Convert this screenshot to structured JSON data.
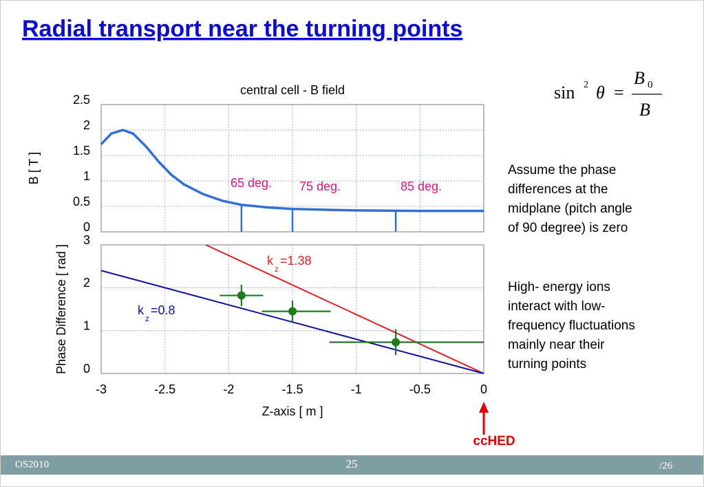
{
  "slide": {
    "title": "Radial transport near the turning points",
    "formula": {
      "sin": "sin",
      "power": "2",
      "theta": "θ",
      "equals": "=",
      "numerator": "B",
      "numerator_sub": "0",
      "denominator": "B"
    },
    "notes": [
      [
        "Assume the phase",
        "differences at the",
        "midplane (pitch angle",
        "of 90 degree) is zero"
      ],
      [
        "High- energy ions",
        "interact  with low-",
        "frequency fluctuations",
        "mainly near their",
        "turning points"
      ]
    ],
    "arrow_label": "ccHED",
    "footer": {
      "left": "OS2010",
      "center": "25",
      "right": "/26"
    }
  },
  "chart_data": [
    {
      "type": "line",
      "title": "central cell - B field",
      "y_label": "B  [ T ]",
      "xlim": [
        -3,
        0
      ],
      "xticks": [
        -3,
        -2.5,
        -2,
        -1.5,
        -1,
        -0.5,
        0
      ],
      "xtick_labels": false,
      "ylim": [
        0,
        2.5
      ],
      "yticks": [
        0,
        0.5,
        1,
        1.5,
        2,
        2.5
      ],
      "grid": true,
      "series": [
        {
          "type": "line",
          "color": "#2f6fd8",
          "x": [
            -3,
            -2.92,
            -2.83,
            -2.75,
            -2.65,
            -2.55,
            -2.45,
            -2.35,
            -2.2,
            -2.05,
            -1.9,
            -1.7,
            -1.5,
            -1.2,
            -1,
            -0.5,
            0
          ],
          "values": [
            1.72,
            1.93,
            2.0,
            1.93,
            1.68,
            1.38,
            1.12,
            0.93,
            0.74,
            0.61,
            0.53,
            0.48,
            0.45,
            0.43,
            0.42,
            0.41,
            0.41
          ]
        }
      ],
      "markers": {
        "color": "#2f6fd8",
        "x": [
          -1.9,
          -1.5,
          -0.69
        ],
        "values": [
          0.53,
          0.45,
          0.42
        ]
      },
      "annotations": [
        {
          "text": "65 deg.",
          "color": "#e0147a"
        },
        {
          "text": "75 deg.",
          "color": "#e0147a"
        },
        {
          "text": "85 deg.",
          "color": "#e0147a"
        }
      ]
    },
    {
      "type": "line",
      "x_label": "Z-axis  [ m ]",
      "y_label": "Phase Difference  [ rad ]",
      "xlim": [
        -3,
        0
      ],
      "xticks": [
        -3,
        -2.5,
        -2,
        -1.5,
        -1,
        -0.5,
        0
      ],
      "ylim": [
        0,
        3
      ],
      "yticks": [
        0,
        1,
        2,
        3
      ],
      "grid": true,
      "series": [
        {
          "type": "line",
          "color": "#e02020",
          "label": {
            "k": "k",
            "sub": "z",
            "rest": "=1.38"
          },
          "x": [
            -2.18,
            0
          ],
          "values": [
            3,
            0
          ]
        },
        {
          "type": "line",
          "color": "#1010a0",
          "label": {
            "k": "k",
            "sub": "z",
            "rest": "=0.8"
          },
          "x": [
            -3,
            0
          ],
          "values": [
            2.4,
            0
          ]
        },
        {
          "type": "errorbar",
          "color": "#1d7a1d",
          "x": [
            -1.9,
            -1.5,
            -0.69
          ],
          "values": [
            1.82,
            1.45,
            0.73
          ],
          "xerr": [
            [
              0.17,
              0.17
            ],
            [
              0.24,
              0.3
            ],
            [
              0.52,
              0.69
            ]
          ],
          "yerr": [
            0.25,
            0.25,
            0.3
          ]
        }
      ]
    }
  ]
}
